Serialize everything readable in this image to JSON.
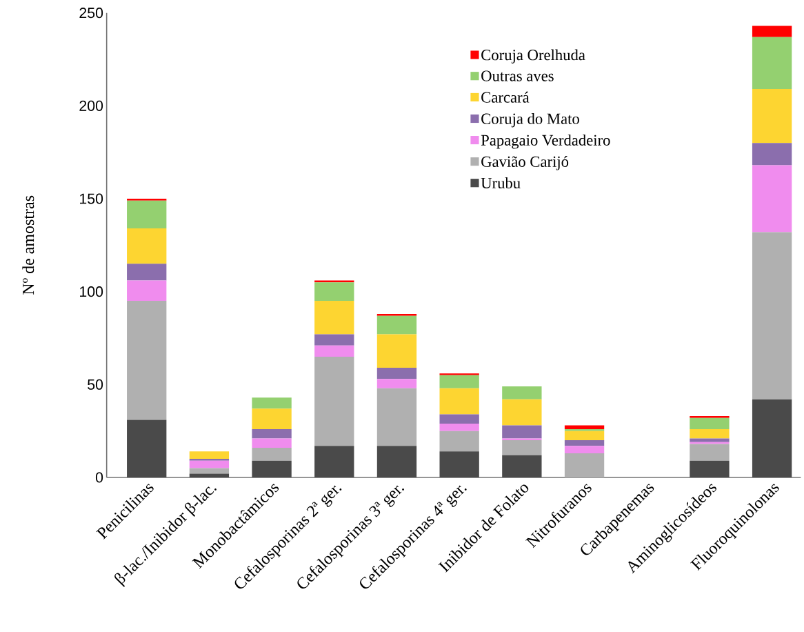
{
  "chart_data": {
    "type": "bar",
    "stacked": true,
    "ylabel": "Nº de amostras",
    "categories": [
      "Penicilinas",
      "β-lac./Inibidor β-lac.",
      "Monobactâmicos",
      "Cefalosporinas 2ª ger.",
      "Cefalosporinas 3ª ger.",
      "Cefalosporinas 4ª ger.",
      "Inibidor de Folato",
      "Nitrofuranos",
      "Carbapenemas",
      "Aminoglicosídeos",
      "Fluoroquinolonas"
    ],
    "series": [
      {
        "name": "Urubu",
        "color": "#4a4a4a",
        "values": [
          31,
          2,
          9,
          17,
          17,
          14,
          12,
          0,
          0,
          9,
          42
        ]
      },
      {
        "name": "Gavião Carijó",
        "color": "#b0b0b0",
        "values": [
          64,
          3,
          7,
          48,
          31,
          11,
          8,
          13,
          0,
          9,
          90
        ]
      },
      {
        "name": "Papagaio Verdadeiro",
        "color": "#f08cee",
        "values": [
          11,
          4,
          5,
          6,
          5,
          4,
          1,
          4,
          0,
          1,
          36
        ]
      },
      {
        "name": "Coruja do Mato",
        "color": "#8b6ead",
        "values": [
          9,
          1,
          5,
          6,
          6,
          5,
          7,
          3,
          0,
          2,
          12
        ]
      },
      {
        "name": "Carcará",
        "color": "#fdd531",
        "values": [
          19,
          4,
          11,
          18,
          18,
          14,
          14,
          5,
          0,
          5,
          29
        ]
      },
      {
        "name": "Outras aves",
        "color": "#94d070",
        "values": [
          15,
          0,
          6,
          10,
          10,
          7,
          7,
          1,
          0,
          6,
          28
        ]
      },
      {
        "name": "Coruja Orelhuda",
        "color": "#ff0000",
        "values": [
          1,
          0,
          0,
          1,
          1,
          1,
          0,
          2,
          0,
          1,
          6
        ]
      }
    ],
    "ylim": [
      0,
      250
    ],
    "yticks": [
      0,
      50,
      100,
      150,
      200,
      250
    ],
    "legend": "top right"
  }
}
